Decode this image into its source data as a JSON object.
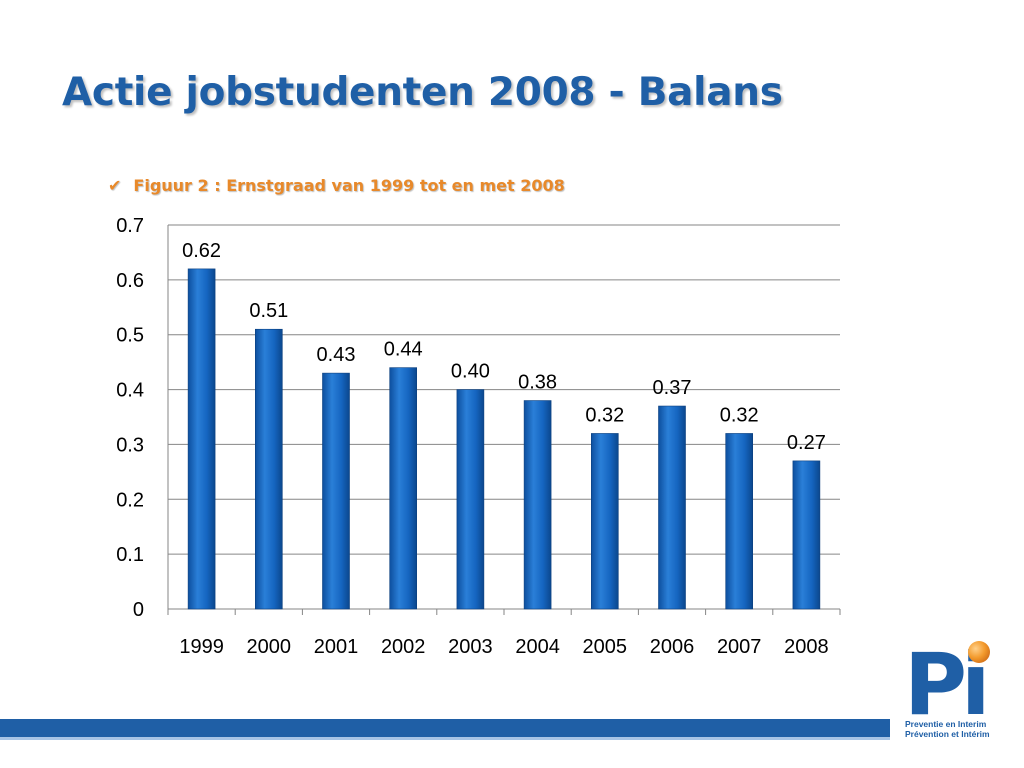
{
  "slide": {
    "title": "Actie jobstudenten 2008 - Balans",
    "subtitle": "Figuur 2 : Ernstgraad van 1999 tot en met 2008",
    "check_icon": "checkmark-icon"
  },
  "logo": {
    "mark": "Pi",
    "line1": "Preventie en Interim",
    "line2": "Prévention et Intérim"
  },
  "colors": {
    "bar": "#1565c0",
    "title": "#1f5fa6",
    "subtitle": "#e8892a",
    "grid": "#868686"
  },
  "chart_data": {
    "type": "bar",
    "categories": [
      "1999",
      "2000",
      "2001",
      "2002",
      "2003",
      "2004",
      "2005",
      "2006",
      "2007",
      "2008"
    ],
    "values": [
      0.62,
      0.51,
      0.43,
      0.44,
      0.4,
      0.38,
      0.32,
      0.37,
      0.32,
      0.27
    ],
    "data_labels": [
      "0.62",
      "0.51",
      "0.43",
      "0.44",
      "0.40",
      "0.38",
      "0.32",
      "0.37",
      "0.32",
      "0.27"
    ],
    "yticks": [
      "0",
      "0.1",
      "0.2",
      "0.3",
      "0.4",
      "0.5",
      "0.6",
      "0.7"
    ],
    "ylim": [
      0,
      0.7
    ],
    "grid": true,
    "legend": "none",
    "title": "",
    "xlabel": "",
    "ylabel": ""
  }
}
